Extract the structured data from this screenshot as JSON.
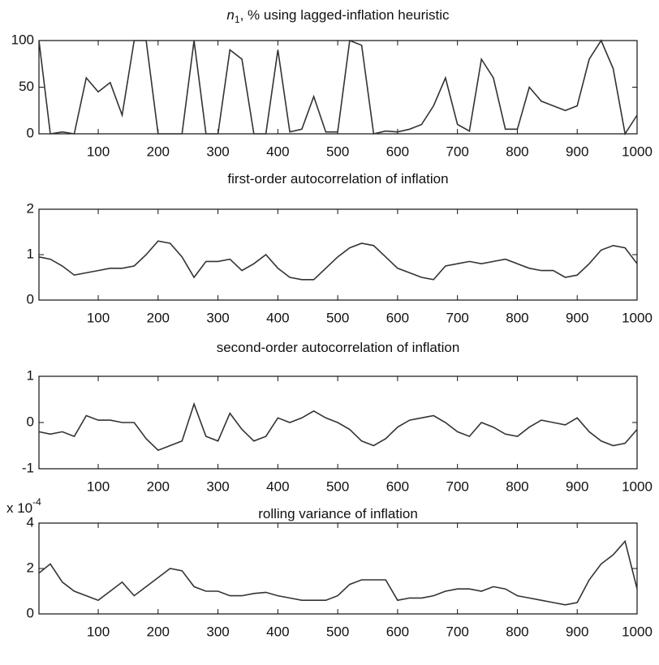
{
  "chart_data": [
    {
      "type": "line",
      "title_symbol": "n",
      "title_subscript": "1",
      "title": ", % using lagged-inflation heuristic",
      "color": "#333333",
      "x": [
        1,
        20,
        40,
        60,
        80,
        100,
        120,
        140,
        160,
        180,
        200,
        220,
        240,
        260,
        280,
        300,
        320,
        340,
        360,
        380,
        400,
        420,
        440,
        460,
        480,
        500,
        520,
        540,
        560,
        580,
        600,
        620,
        640,
        660,
        680,
        700,
        720,
        740,
        760,
        780,
        800,
        820,
        840,
        860,
        880,
        900,
        920,
        940,
        960,
        980,
        1000
      ],
      "values": [
        100,
        0,
        2,
        0,
        60,
        45,
        55,
        20,
        100,
        100,
        0,
        0,
        0,
        100,
        0,
        0,
        90,
        80,
        0,
        0,
        90,
        2,
        5,
        40,
        2,
        2,
        100,
        95,
        0,
        3,
        2,
        5,
        10,
        30,
        60,
        10,
        3,
        80,
        60,
        5,
        5,
        50,
        35,
        30,
        25,
        30,
        80,
        100,
        70,
        0,
        20
      ],
      "xlim": [
        1,
        1000
      ],
      "ylim": [
        0,
        100
      ],
      "xticks": [
        100,
        200,
        300,
        400,
        500,
        600,
        700,
        800,
        900,
        1000
      ],
      "yticks": [
        0,
        50,
        100
      ]
    },
    {
      "type": "line",
      "title": "first-order autocorrelation of inflation",
      "color": "#333333",
      "x": [
        1,
        20,
        40,
        60,
        80,
        100,
        120,
        140,
        160,
        180,
        200,
        220,
        240,
        260,
        280,
        300,
        320,
        340,
        360,
        380,
        400,
        420,
        440,
        460,
        480,
        500,
        520,
        540,
        560,
        580,
        600,
        620,
        640,
        660,
        680,
        700,
        720,
        740,
        760,
        780,
        800,
        820,
        840,
        860,
        880,
        900,
        920,
        940,
        960,
        980,
        1000
      ],
      "values": [
        0.95,
        0.9,
        0.75,
        0.55,
        0.6,
        0.65,
        0.7,
        0.7,
        0.75,
        1.0,
        1.3,
        1.25,
        0.95,
        0.5,
        0.85,
        0.85,
        0.9,
        0.65,
        0.8,
        1.0,
        0.7,
        0.5,
        0.45,
        0.45,
        0.7,
        0.95,
        1.15,
        1.25,
        1.2,
        0.95,
        0.7,
        0.6,
        0.5,
        0.45,
        0.75,
        0.8,
        0.85,
        0.8,
        0.85,
        0.9,
        0.8,
        0.7,
        0.65,
        0.65,
        0.5,
        0.55,
        0.8,
        1.1,
        1.2,
        1.15,
        0.8
      ],
      "xlim": [
        1,
        1000
      ],
      "ylim": [
        0,
        2
      ],
      "xticks": [
        100,
        200,
        300,
        400,
        500,
        600,
        700,
        800,
        900,
        1000
      ],
      "yticks": [
        0,
        1,
        2
      ]
    },
    {
      "type": "line",
      "title": "second-order autocorrelation of inflation",
      "color": "#333333",
      "x": [
        1,
        20,
        40,
        60,
        80,
        100,
        120,
        140,
        160,
        180,
        200,
        220,
        240,
        260,
        280,
        300,
        320,
        340,
        360,
        380,
        400,
        420,
        440,
        460,
        480,
        500,
        520,
        540,
        560,
        580,
        600,
        620,
        640,
        660,
        680,
        700,
        720,
        740,
        760,
        780,
        800,
        820,
        840,
        860,
        880,
        900,
        920,
        940,
        960,
        980,
        1000
      ],
      "values": [
        -0.2,
        -0.25,
        -0.2,
        -0.3,
        0.15,
        0.05,
        0.05,
        0.0,
        0.0,
        -0.35,
        -0.6,
        -0.5,
        -0.4,
        0.4,
        -0.3,
        -0.4,
        0.2,
        -0.15,
        -0.4,
        -0.3,
        0.1,
        0.0,
        0.1,
        0.25,
        0.1,
        0.0,
        -0.15,
        -0.4,
        -0.5,
        -0.35,
        -0.1,
        0.05,
        0.1,
        0.15,
        0.0,
        -0.2,
        -0.3,
        0.0,
        -0.1,
        -0.25,
        -0.3,
        -0.1,
        0.05,
        0.0,
        -0.05,
        0.1,
        -0.2,
        -0.4,
        -0.5,
        -0.45,
        -0.15
      ],
      "xlim": [
        1,
        1000
      ],
      "ylim": [
        -1,
        1
      ],
      "xticks": [
        100,
        200,
        300,
        400,
        500,
        600,
        700,
        800,
        900,
        1000
      ],
      "yticks": [
        -1,
        0,
        1
      ]
    },
    {
      "type": "line",
      "title": "rolling variance of inflation",
      "y_multiplier": "x 10",
      "y_multiplier_exponent": "-4",
      "color": "#333333",
      "x": [
        1,
        20,
        40,
        60,
        80,
        100,
        120,
        140,
        160,
        180,
        200,
        220,
        240,
        260,
        280,
        300,
        320,
        340,
        360,
        380,
        400,
        420,
        440,
        460,
        480,
        500,
        520,
        540,
        560,
        580,
        600,
        620,
        640,
        660,
        680,
        700,
        720,
        740,
        760,
        780,
        800,
        820,
        840,
        860,
        880,
        900,
        920,
        940,
        960,
        980,
        1000
      ],
      "values": [
        1.8,
        2.2,
        1.4,
        1.0,
        0.8,
        0.6,
        1.0,
        1.4,
        0.8,
        1.2,
        1.6,
        2.0,
        1.9,
        1.2,
        1.0,
        1.0,
        0.8,
        0.8,
        0.9,
        0.95,
        0.8,
        0.7,
        0.6,
        0.6,
        0.6,
        0.8,
        1.3,
        1.5,
        1.5,
        1.5,
        0.6,
        0.7,
        0.7,
        0.8,
        1.0,
        1.1,
        1.1,
        1.0,
        1.2,
        1.1,
        0.8,
        0.7,
        0.6,
        0.5,
        0.4,
        0.5,
        1.5,
        2.2,
        2.6,
        3.2,
        1.1
      ],
      "xlim": [
        1,
        1000
      ],
      "ylim": [
        0,
        4
      ],
      "xticks": [
        100,
        200,
        300,
        400,
        500,
        600,
        700,
        800,
        900,
        1000
      ],
      "yticks": [
        0,
        2,
        4
      ]
    }
  ]
}
